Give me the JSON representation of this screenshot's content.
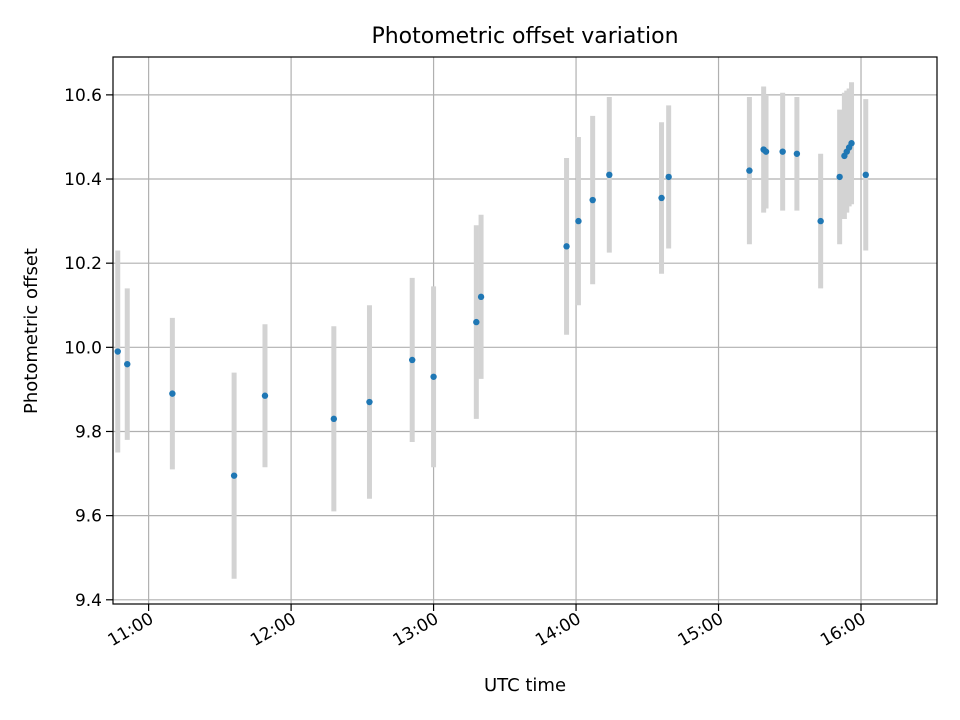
{
  "chart_data": {
    "type": "scatter",
    "title": "Photometric offset variation",
    "xlabel": "UTC time",
    "ylabel": "Photometric offset",
    "x_unit": "UTC",
    "xlim": [
      "10:45",
      "16:32"
    ],
    "ylim": [
      9.39,
      10.69
    ],
    "grid": true,
    "x_ticks": [
      "11:00",
      "12:00",
      "13:00",
      "14:00",
      "15:00",
      "16:00"
    ],
    "y_ticks": [
      "9.4",
      "9.6",
      "9.8",
      "10.0",
      "10.2",
      "10.4",
      "10.6"
    ],
    "colors": {
      "marker": "#1f77b4",
      "errorbar": "#d3d3d3",
      "grid": "#b0b0b0"
    },
    "series": [
      {
        "points": [
          {
            "time": "10:47",
            "value": 9.99,
            "error": 0.24
          },
          {
            "time": "10:51",
            "value": 9.96,
            "error": 0.18
          },
          {
            "time": "11:10",
            "value": 9.89,
            "error": 0.18
          },
          {
            "time": "11:36",
            "value": 9.695,
            "error": 0.245
          },
          {
            "time": "11:49",
            "value": 9.885,
            "error": 0.17
          },
          {
            "time": "12:18",
            "value": 9.83,
            "error": 0.22
          },
          {
            "time": "12:33",
            "value": 9.87,
            "error": 0.23
          },
          {
            "time": "12:51",
            "value": 9.97,
            "error": 0.195
          },
          {
            "time": "13:00",
            "value": 9.93,
            "error": 0.215
          },
          {
            "time": "13:18",
            "value": 10.06,
            "error": 0.23
          },
          {
            "time": "13:20",
            "value": 10.12,
            "error": 0.195
          },
          {
            "time": "13:56",
            "value": 10.24,
            "error": 0.21
          },
          {
            "time": "14:01",
            "value": 10.3,
            "error": 0.2
          },
          {
            "time": "14:07",
            "value": 10.35,
            "error": 0.2
          },
          {
            "time": "14:14",
            "value": 10.41,
            "error": 0.185
          },
          {
            "time": "14:36",
            "value": 10.355,
            "error": 0.18
          },
          {
            "time": "14:39",
            "value": 10.405,
            "error": 0.17
          },
          {
            "time": "15:13",
            "value": 10.42,
            "error": 0.175
          },
          {
            "time": "15:19",
            "value": 10.47,
            "error": 0.15
          },
          {
            "time": "15:20",
            "value": 10.465,
            "error": 0.135
          },
          {
            "time": "15:27",
            "value": 10.465,
            "error": 0.14
          },
          {
            "time": "15:33",
            "value": 10.46,
            "error": 0.135
          },
          {
            "time": "15:43",
            "value": 10.3,
            "error": 0.16
          },
          {
            "time": "15:51",
            "value": 10.405,
            "error": 0.16
          },
          {
            "time": "15:53",
            "value": 10.455,
            "error": 0.15
          },
          {
            "time": "15:54",
            "value": 10.465,
            "error": 0.145
          },
          {
            "time": "15:55",
            "value": 10.475,
            "error": 0.14
          },
          {
            "time": "15:56",
            "value": 10.485,
            "error": 0.145
          },
          {
            "time": "16:02",
            "value": 10.41,
            "error": 0.18
          }
        ]
      }
    ]
  }
}
